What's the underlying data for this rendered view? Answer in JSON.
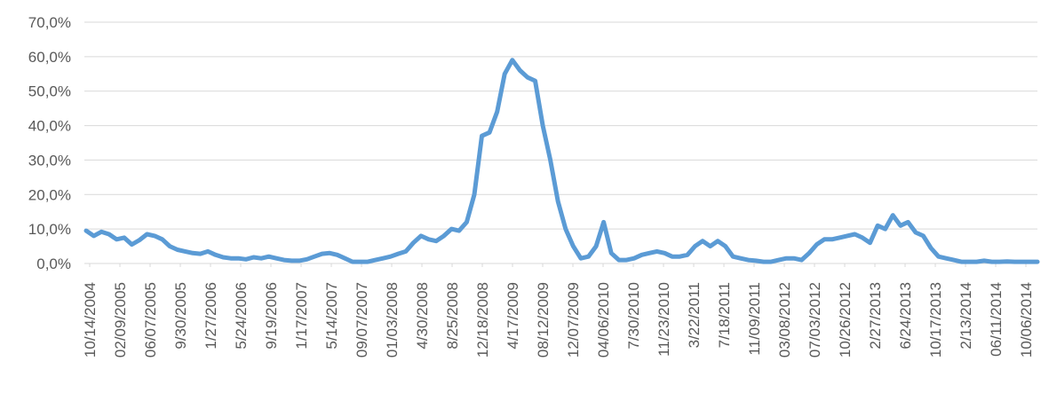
{
  "chart_data": {
    "type": "line",
    "title": "",
    "xlabel": "",
    "ylabel": "",
    "ylim": [
      0,
      70
    ],
    "y_ticks": [
      "0,0%",
      "10,0%",
      "20,0%",
      "30,0%",
      "40,0%",
      "50,0%",
      "60,0%",
      "70,0%"
    ],
    "x_tick_labels": [
      "10/14/2004",
      "02/09/2005",
      "06/07/2005",
      "9/30/2005",
      "1/27/2006",
      "5/24/2006",
      "9/19/2006",
      "1/17/2007",
      "5/14/2007",
      "09/07/2007",
      "01/03/2008",
      "4/30/2008",
      "8/25/2008",
      "12/18/2008",
      "4/17/2009",
      "08/12/2009",
      "12/07/2009",
      "04/06/2010",
      "7/30/2010",
      "11/23/2010",
      "3/22/2011",
      "7/18/2011",
      "11/09/2011",
      "03/08/2012",
      "07/03/2012",
      "10/26/2012",
      "2/27/2013",
      "6/24/2013",
      "10/17/2013",
      "2/13/2014",
      "06/11/2014",
      "10/06/2014"
    ],
    "grid": true,
    "legend": "none",
    "colors": {
      "line": "#5b9bd5",
      "grid": "#d9d9d9",
      "text": "#595959"
    },
    "series": [
      {
        "x": [
          "10/14/2004",
          "11/15/2004",
          "12/15/2004",
          "01/14/2005",
          "02/09/2005",
          "03/10/2005",
          "04/08/2005",
          "05/09/2005",
          "06/07/2005",
          "07/07/2005",
          "08/05/2005",
          "09/05/2005",
          "9/30/2005",
          "11/01/2005",
          "12/01/2005",
          "01/02/2006",
          "1/27/2006",
          "02/27/2006",
          "03/28/2006",
          "04/26/2006",
          "5/24/2006",
          "06/22/2006",
          "07/21/2006",
          "08/21/2006",
          "9/19/2006",
          "10/18/2006",
          "11/16/2006",
          "12/18/2006",
          "1/17/2007",
          "02/15/2007",
          "03/16/2007",
          "04/16/2007",
          "5/14/2007",
          "06/12/2007",
          "07/11/2007",
          "08/09/2007",
          "09/07/2007",
          "10/08/2007",
          "11/06/2007",
          "12/05/2007",
          "01/03/2008",
          "02/01/2008",
          "03/03/2008",
          "04/01/2008",
          "4/30/2008",
          "05/29/2008",
          "06/27/2008",
          "07/28/2008",
          "8/25/2008",
          "09/23/2008",
          "10/22/2008",
          "11/20/2008",
          "12/18/2008",
          "01/19/2009",
          "02/17/2009",
          "03/18/2009",
          "4/17/2009",
          "05/15/2009",
          "06/15/2009",
          "07/14/2009",
          "08/12/2009",
          "09/10/2009",
          "10/09/2009",
          "11/09/2009",
          "12/07/2009",
          "01/06/2010",
          "02/04/2010",
          "03/05/2010",
          "04/06/2010",
          "05/05/2010",
          "06/03/2010",
          "07/02/2010",
          "7/30/2010",
          "08/30/2010",
          "09/28/2010",
          "10/27/2010",
          "11/23/2010",
          "12/22/2010",
          "01/21/2011",
          "02/21/2011",
          "3/22/2011",
          "04/20/2011",
          "05/19/2011",
          "06/17/2011",
          "7/18/2011",
          "08/16/2011",
          "09/14/2011",
          "10/13/2011",
          "11/09/2011",
          "12/08/2011",
          "01/09/2012",
          "02/07/2012",
          "03/08/2012",
          "04/06/2012",
          "05/07/2012",
          "06/05/2012",
          "07/03/2012",
          "08/01/2012",
          "08/30/2012",
          "09/28/2012",
          "10/26/2012",
          "11/26/2012",
          "12/26/2012",
          "01/25/2013",
          "2/27/2013",
          "03/28/2013",
          "04/26/2013",
          "05/27/2013",
          "6/24/2013",
          "07/23/2013",
          "08/21/2013",
          "09/19/2013",
          "10/17/2013",
          "11/15/2013",
          "12/16/2013",
          "01/14/2014",
          "2/13/2014",
          "03/14/2014",
          "04/14/2014",
          "05/13/2014",
          "06/11/2014",
          "07/10/2014",
          "08/08/2014",
          "09/08/2014",
          "10/06/2014",
          "11/04/2014"
        ],
        "values": [
          9.5,
          8.0,
          9.2,
          8.5,
          7.0,
          7.5,
          5.5,
          6.8,
          8.5,
          8.0,
          7.0,
          5.0,
          4.0,
          3.5,
          3.0,
          2.8,
          3.5,
          2.5,
          1.8,
          1.5,
          1.5,
          1.2,
          1.8,
          1.5,
          2.0,
          1.5,
          1.0,
          0.8,
          0.8,
          1.2,
          2.0,
          2.8,
          3.0,
          2.5,
          1.5,
          0.5,
          0.5,
          0.5,
          1.0,
          1.5,
          2.0,
          2.8,
          3.5,
          6.0,
          8.0,
          7.0,
          6.5,
          8.0,
          10.0,
          9.5,
          12.0,
          20.0,
          37.0,
          38.0,
          44.0,
          55.0,
          59.0,
          56.0,
          54.0,
          53.0,
          40.0,
          30.0,
          18.0,
          10.0,
          5.0,
          1.5,
          2.0,
          5.0,
          12.0,
          3.0,
          1.0,
          1.0,
          1.5,
          2.5,
          3.0,
          3.5,
          3.0,
          2.0,
          2.0,
          2.5,
          5.0,
          6.5,
          5.0,
          6.5,
          5.0,
          2.0,
          1.5,
          1.0,
          0.8,
          0.5,
          0.5,
          1.0,
          1.5,
          1.5,
          1.0,
          3.0,
          5.5,
          7.0,
          7.0,
          7.5,
          8.0,
          8.5,
          7.5,
          6.0,
          11.0,
          10.0,
          14.0,
          11.0,
          12.0,
          9.0,
          8.0,
          4.5,
          2.0,
          1.5,
          1.0,
          0.5,
          0.5,
          0.5,
          0.8,
          0.5,
          0.5,
          0.6,
          0.5,
          0.5,
          0.5,
          0.5
        ]
      }
    ]
  }
}
